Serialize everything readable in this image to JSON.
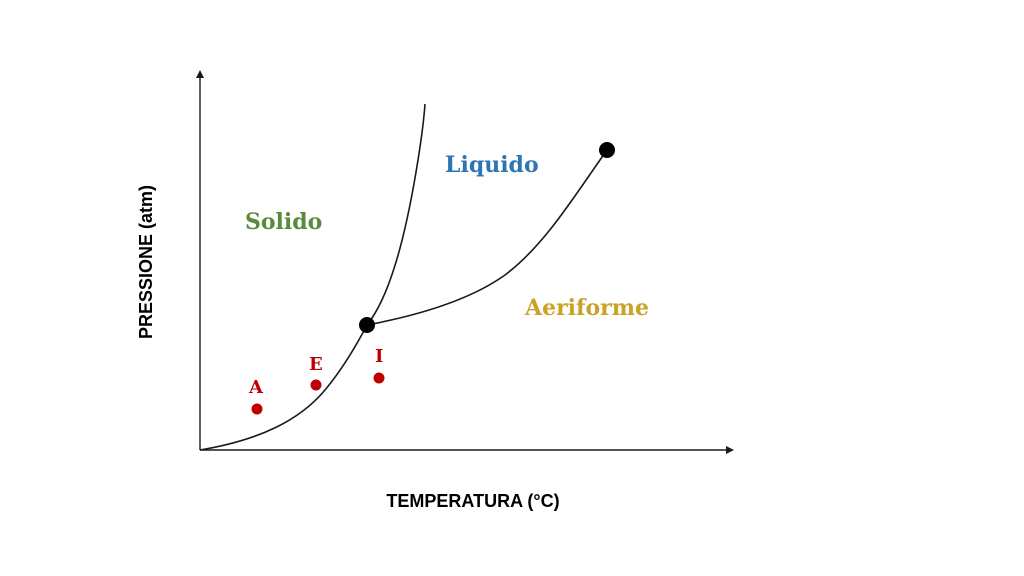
{
  "axes": {
    "x_label": "TEMPERATURA (°C)",
    "y_label": "PRESSIONE (atm)"
  },
  "regions": {
    "solid": {
      "label": "Solido",
      "color": "#5a8a3c"
    },
    "liquid": {
      "label": "Liquido",
      "color": "#2e75b6"
    },
    "gas": {
      "label": "Aeriforme",
      "color": "#c9a227"
    }
  },
  "points": [
    {
      "label": "A",
      "color": "#c00000"
    },
    {
      "label": "E",
      "color": "#c00000"
    },
    {
      "label": "I",
      "color": "#c00000"
    }
  ],
  "special_points": {
    "triple_point_color": "#000000",
    "critical_point_color": "#000000"
  }
}
